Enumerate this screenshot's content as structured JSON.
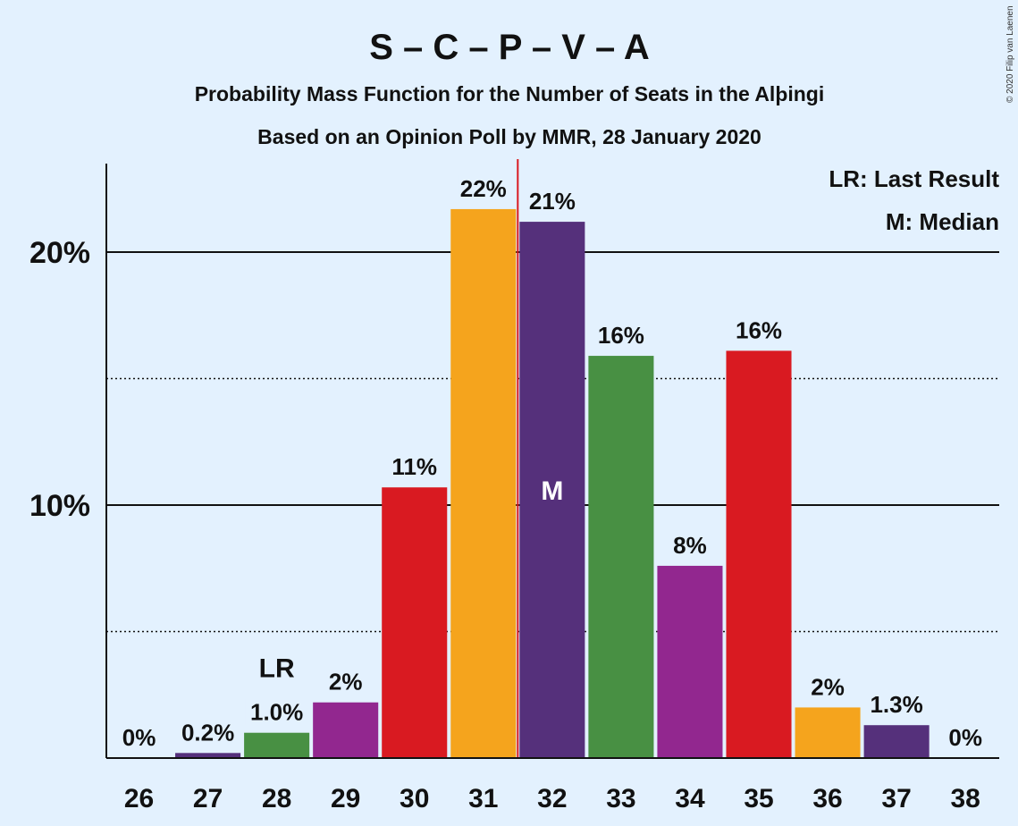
{
  "chart_data": {
    "type": "bar",
    "title": "S – C – P – V – A",
    "subtitle": "Probability Mass Function for the Number of Seats in the Alþingi",
    "subtitle2": "Based on an Opinion Poll by MMR, 28 January 2020",
    "copyright": "© 2020 Filip van Laenen",
    "categories": [
      "26",
      "27",
      "28",
      "29",
      "30",
      "31",
      "32",
      "33",
      "34",
      "35",
      "36",
      "37",
      "38"
    ],
    "values": [
      0,
      0.2,
      1.0,
      2.2,
      10.7,
      21.7,
      21.2,
      15.9,
      7.6,
      16.1,
      2.0,
      1.3,
      0
    ],
    "value_labels": [
      "0%",
      "0.2%",
      "1.0%",
      "2%",
      "11%",
      "22%",
      "21%",
      "16%",
      "8%",
      "16%",
      "2%",
      "1.3%",
      "0%"
    ],
    "bar_colors": [
      "#9c9c9c",
      "#55307b",
      "#489043",
      "#92278f",
      "#d91a21",
      "#f5a41d",
      "#55307b",
      "#489043",
      "#92278f",
      "#d91a21",
      "#f5a41d",
      "#55307b",
      "#9c9c9c"
    ],
    "ylim": [
      0,
      23.5
    ],
    "yticks": [
      10,
      20
    ],
    "ytick_labels": [
      "10%",
      "20%"
    ],
    "minor_gridlines": [
      5,
      15
    ],
    "last_result_category": "28",
    "last_result_marker": "LR",
    "median_category": "32",
    "median_marker": "M",
    "legend": [
      "LR: Last Result",
      "M: Median"
    ],
    "legend_position": "top-right",
    "median_line_color": "#d91a21"
  }
}
